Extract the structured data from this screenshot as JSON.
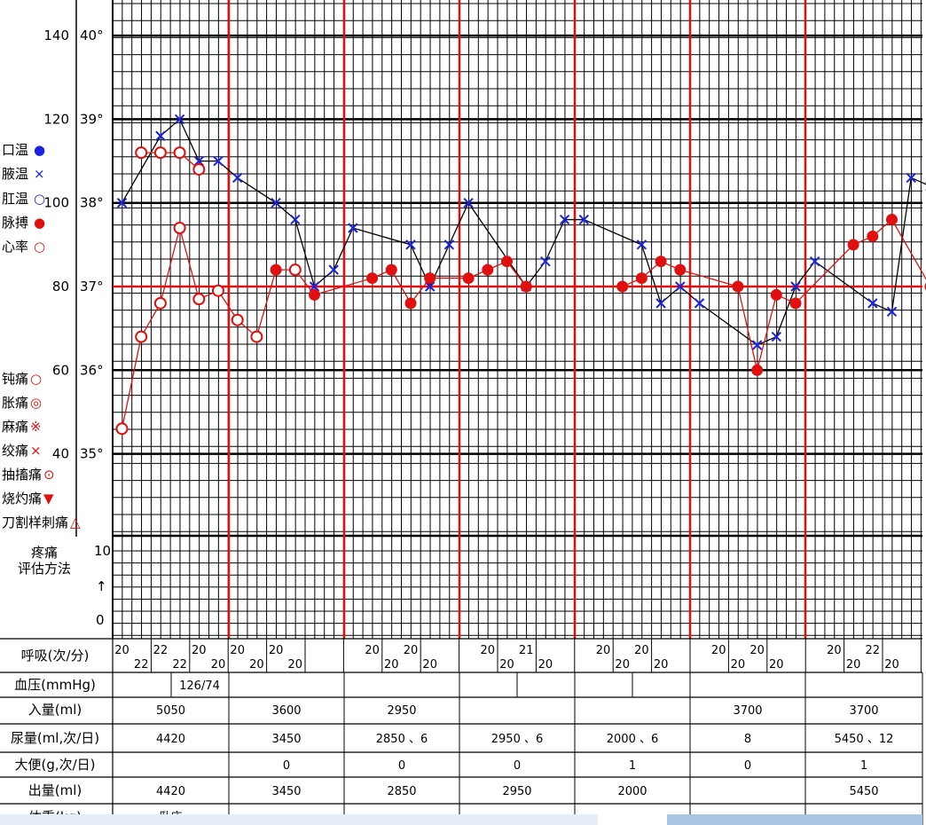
{
  "chart_data": {
    "type": "line",
    "y_left_ticks": [
      {
        "pulse": "140",
        "temp": "40°"
      },
      {
        "pulse": "120",
        "temp": "39°"
      },
      {
        "pulse": "100",
        "temp": "38°"
      },
      {
        "pulse": "80",
        "temp": "37°"
      },
      {
        "pulse": "60",
        "temp": "36°"
      },
      {
        "pulse": "40",
        "temp": "35°"
      }
    ],
    "vital_legend": [
      {
        "label": "口温",
        "symbol": "●",
        "color": "#1a22e0"
      },
      {
        "label": "腋温",
        "symbol": "×",
        "color": "#1a22e0"
      },
      {
        "label": "肛温",
        "symbol": "○",
        "color": "#1a22e0"
      },
      {
        "label": "脉搏",
        "symbol": "●",
        "color": "#e01010"
      },
      {
        "label": "心率",
        "symbol": "○",
        "color": "#e01010"
      }
    ],
    "pain_legend": [
      {
        "label": "钝痛",
        "symbol": "○"
      },
      {
        "label": "胀痛",
        "symbol": "◎"
      },
      {
        "label": "麻痛",
        "symbol": "※"
      },
      {
        "label": "绞痛",
        "symbol": "×"
      },
      {
        "label": "抽搐痛",
        "symbol": "⊙"
      },
      {
        "label": "烧灼痛",
        "symbol": "▼"
      },
      {
        "label": "刀割样刺痛",
        "symbol": "△"
      }
    ],
    "pain_title_line1": "疼痛",
    "pain_title_line2": "评估方法",
    "pain_ticks": {
      "top": "10",
      "arrow": "↑",
      "bottom": "0"
    },
    "series": [
      {
        "name": "腋温",
        "marker": "cross",
        "color": "#1a22e0",
        "line_color": "#000000",
        "points": [
          {
            "slot": 0,
            "temp": 38.0
          },
          {
            "slot": 2,
            "temp": 38.8
          },
          {
            "slot": 3,
            "temp": 39.0
          },
          {
            "slot": 4,
            "temp": 38.5
          },
          {
            "slot": 5,
            "temp": 38.5
          },
          {
            "slot": 6,
            "temp": 38.3
          },
          {
            "slot": 8,
            "temp": 38.0
          },
          {
            "slot": 9,
            "temp": 37.8
          },
          {
            "slot": 10,
            "temp": 37.0
          },
          {
            "slot": 11,
            "temp": 37.2
          },
          {
            "slot": 12,
            "temp": 37.7
          },
          {
            "slot": 15,
            "temp": 37.5
          },
          {
            "slot": 16,
            "temp": 37.0
          },
          {
            "slot": 17,
            "temp": 37.5
          },
          {
            "slot": 18,
            "temp": 38.0
          },
          {
            "slot": 21,
            "temp": 37.0
          },
          {
            "slot": 22,
            "temp": 37.3
          },
          {
            "slot": 23,
            "temp": 37.8
          },
          {
            "slot": 24,
            "temp": 37.8
          },
          {
            "slot": 27,
            "temp": 37.5
          },
          {
            "slot": 28,
            "temp": 36.8
          },
          {
            "slot": 29,
            "temp": 37.0
          },
          {
            "slot": 30,
            "temp": 36.8
          },
          {
            "slot": 33,
            "temp": 36.3
          },
          {
            "slot": 34,
            "temp": 36.4
          },
          {
            "slot": 35,
            "temp": 37.0
          },
          {
            "slot": 36,
            "temp": 37.3
          },
          {
            "slot": 39,
            "temp": 36.8
          },
          {
            "slot": 40,
            "temp": 36.7
          },
          {
            "slot": 41,
            "temp": 38.3
          },
          {
            "slot": 42,
            "temp": 38.2
          }
        ]
      },
      {
        "name": "脉搏",
        "marker": "dot",
        "color": "#e01010",
        "line_color": "#e01010",
        "points": [
          {
            "slot": 0,
            "temp": 35.3,
            "open": true
          },
          {
            "slot": 1,
            "temp": 36.4,
            "open": true
          },
          {
            "slot": 2,
            "temp": 36.8,
            "open": true
          },
          {
            "slot": 3,
            "temp": 37.7,
            "open": true
          },
          {
            "slot": 4,
            "temp": 36.85,
            "open": true
          },
          {
            "slot": 5,
            "temp": 36.95,
            "open": true
          },
          {
            "slot": 6,
            "temp": 36.6,
            "open": true
          },
          {
            "slot": 7,
            "temp": 36.4,
            "open": true
          },
          {
            "slot": 8,
            "temp": 37.2
          },
          {
            "slot": 9,
            "temp": 37.2,
            "open": true
          },
          {
            "slot": 10,
            "temp": 36.9
          },
          {
            "slot": 13,
            "temp": 37.1
          },
          {
            "slot": 14,
            "temp": 37.2
          },
          {
            "slot": 15,
            "temp": 36.8
          },
          {
            "slot": 16,
            "temp": 37.1
          },
          {
            "slot": 18,
            "temp": 37.1
          },
          {
            "slot": 19,
            "temp": 37.2
          },
          {
            "slot": 20,
            "temp": 37.3
          },
          {
            "slot": 21,
            "temp": 37.0
          },
          {
            "slot": 26,
            "temp": 37.0
          },
          {
            "slot": 27,
            "temp": 37.1
          },
          {
            "slot": 28,
            "temp": 37.3
          },
          {
            "slot": 29,
            "temp": 37.2
          },
          {
            "slot": 32,
            "temp": 37.0
          },
          {
            "slot": 33,
            "temp": 36.0
          },
          {
            "slot": 34,
            "temp": 36.9
          },
          {
            "slot": 35,
            "temp": 36.8
          },
          {
            "slot": 38,
            "temp": 37.5
          },
          {
            "slot": 39,
            "temp": 37.6
          },
          {
            "slot": 40,
            "temp": 37.8
          },
          {
            "slot": 42,
            "temp": 37.0
          }
        ]
      },
      {
        "name": "心率",
        "marker": "circle",
        "color": "#e01010",
        "line_color": "#e01010",
        "points": [
          {
            "slot": 1,
            "temp": 38.6
          },
          {
            "slot": 2,
            "temp": 38.6
          },
          {
            "slot": 3,
            "temp": 38.6
          },
          {
            "slot": 4,
            "temp": 38.4
          }
        ]
      }
    ],
    "rows": {
      "resp_label": "呼吸(次/分)",
      "resp": [
        {
          "slot": 0,
          "v": "20",
          "pos": "top"
        },
        {
          "slot": 1,
          "v": "22",
          "pos": "bottom"
        },
        {
          "slot": 2,
          "v": "22",
          "pos": "top"
        },
        {
          "slot": 3,
          "v": "22",
          "pos": "bottom"
        },
        {
          "slot": 4,
          "v": "20",
          "pos": "top"
        },
        {
          "slot": 5,
          "v": "20",
          "pos": "bottom"
        },
        {
          "slot": 6,
          "v": "20",
          "pos": "top"
        },
        {
          "slot": 7,
          "v": "20",
          "pos": "bottom"
        },
        {
          "slot": 8,
          "v": "20",
          "pos": "top"
        },
        {
          "slot": 9,
          "v": "20",
          "pos": "bottom"
        },
        {
          "slot": 13,
          "v": "20",
          "pos": "top"
        },
        {
          "slot": 14,
          "v": "20",
          "pos": "bottom"
        },
        {
          "slot": 15,
          "v": "20",
          "pos": "top"
        },
        {
          "slot": 16,
          "v": "20",
          "pos": "bottom"
        },
        {
          "slot": 19,
          "v": "20",
          "pos": "top"
        },
        {
          "slot": 20,
          "v": "20",
          "pos": "bottom"
        },
        {
          "slot": 21,
          "v": "21",
          "pos": "top"
        },
        {
          "slot": 22,
          "v": "20",
          "pos": "bottom"
        },
        {
          "slot": 25,
          "v": "20",
          "pos": "top"
        },
        {
          "slot": 26,
          "v": "20",
          "pos": "bottom"
        },
        {
          "slot": 27,
          "v": "20",
          "pos": "top"
        },
        {
          "slot": 28,
          "v": "20",
          "pos": "bottom"
        },
        {
          "slot": 31,
          "v": "20",
          "pos": "top"
        },
        {
          "slot": 32,
          "v": "20",
          "pos": "bottom"
        },
        {
          "slot": 33,
          "v": "20",
          "pos": "top"
        },
        {
          "slot": 34,
          "v": "20",
          "pos": "bottom"
        },
        {
          "slot": 37,
          "v": "20",
          "pos": "top"
        },
        {
          "slot": 38,
          "v": "20",
          "pos": "bottom"
        },
        {
          "slot": 39,
          "v": "22",
          "pos": "top"
        },
        {
          "slot": 40,
          "v": "20",
          "pos": "bottom"
        }
      ],
      "bp_label": "血压(mmHg)",
      "bp_value": "126/74",
      "intake_label": "入量(ml)",
      "intake": [
        "5050",
        "3600",
        "2950",
        "",
        "",
        "3700",
        "3700"
      ],
      "urine_label": "尿量(ml,次/日)",
      "urine": [
        "4420",
        "3450",
        "2850 、6",
        "2950 、6",
        "2000 、6",
        "8",
        "5450 、12"
      ],
      "stool_label": "大便(g,次/日)",
      "stool": [
        "",
        "0",
        "0",
        "0",
        "1",
        "0",
        "1"
      ],
      "output_label": "出量(ml)",
      "output": [
        "4420",
        "3450",
        "2850",
        "2950",
        "2000",
        "",
        "5450"
      ],
      "weight_label": "体重(kg)",
      "weight_value": "卧床"
    }
  }
}
